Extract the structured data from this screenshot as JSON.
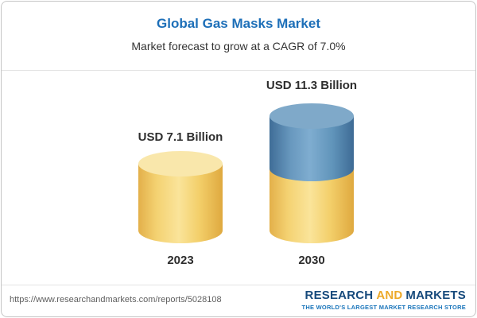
{
  "header": {
    "title": "Global Gas Masks Market",
    "subtitle": "Market forecast to grow at a CAGR of 7.0%"
  },
  "chart_data": {
    "type": "bar",
    "title": "Global Gas Masks Market",
    "subtitle": "Market forecast to grow at a CAGR of 7.0%",
    "cagr": "7.0%",
    "categories": [
      "2023",
      "2030"
    ],
    "values": [
      7.1,
      11.3
    ],
    "value_labels": [
      "USD 7.1 Billion",
      "USD 11.3 Billion"
    ],
    "unit": "USD Billion",
    "ylim": [
      0,
      12
    ],
    "grid": false,
    "legend": false,
    "bar_2030_segments": [
      {
        "value": 7.1,
        "color": "#f3cf6a"
      },
      {
        "value": 4.2,
        "color": "#6094ba"
      }
    ],
    "colors": {
      "bar_yellow": "#f3cf6a",
      "bar_blue": "#6094ba",
      "title_blue": "#1d6fb8"
    }
  },
  "footer": {
    "url": "https://www.researchandmarkets.com/reports/5028108",
    "logo": {
      "word1": "RESEARCH",
      "word2": "AND",
      "word3": "MARKETS",
      "tagline": "THE WORLD'S LARGEST MARKET RESEARCH STORE"
    }
  }
}
